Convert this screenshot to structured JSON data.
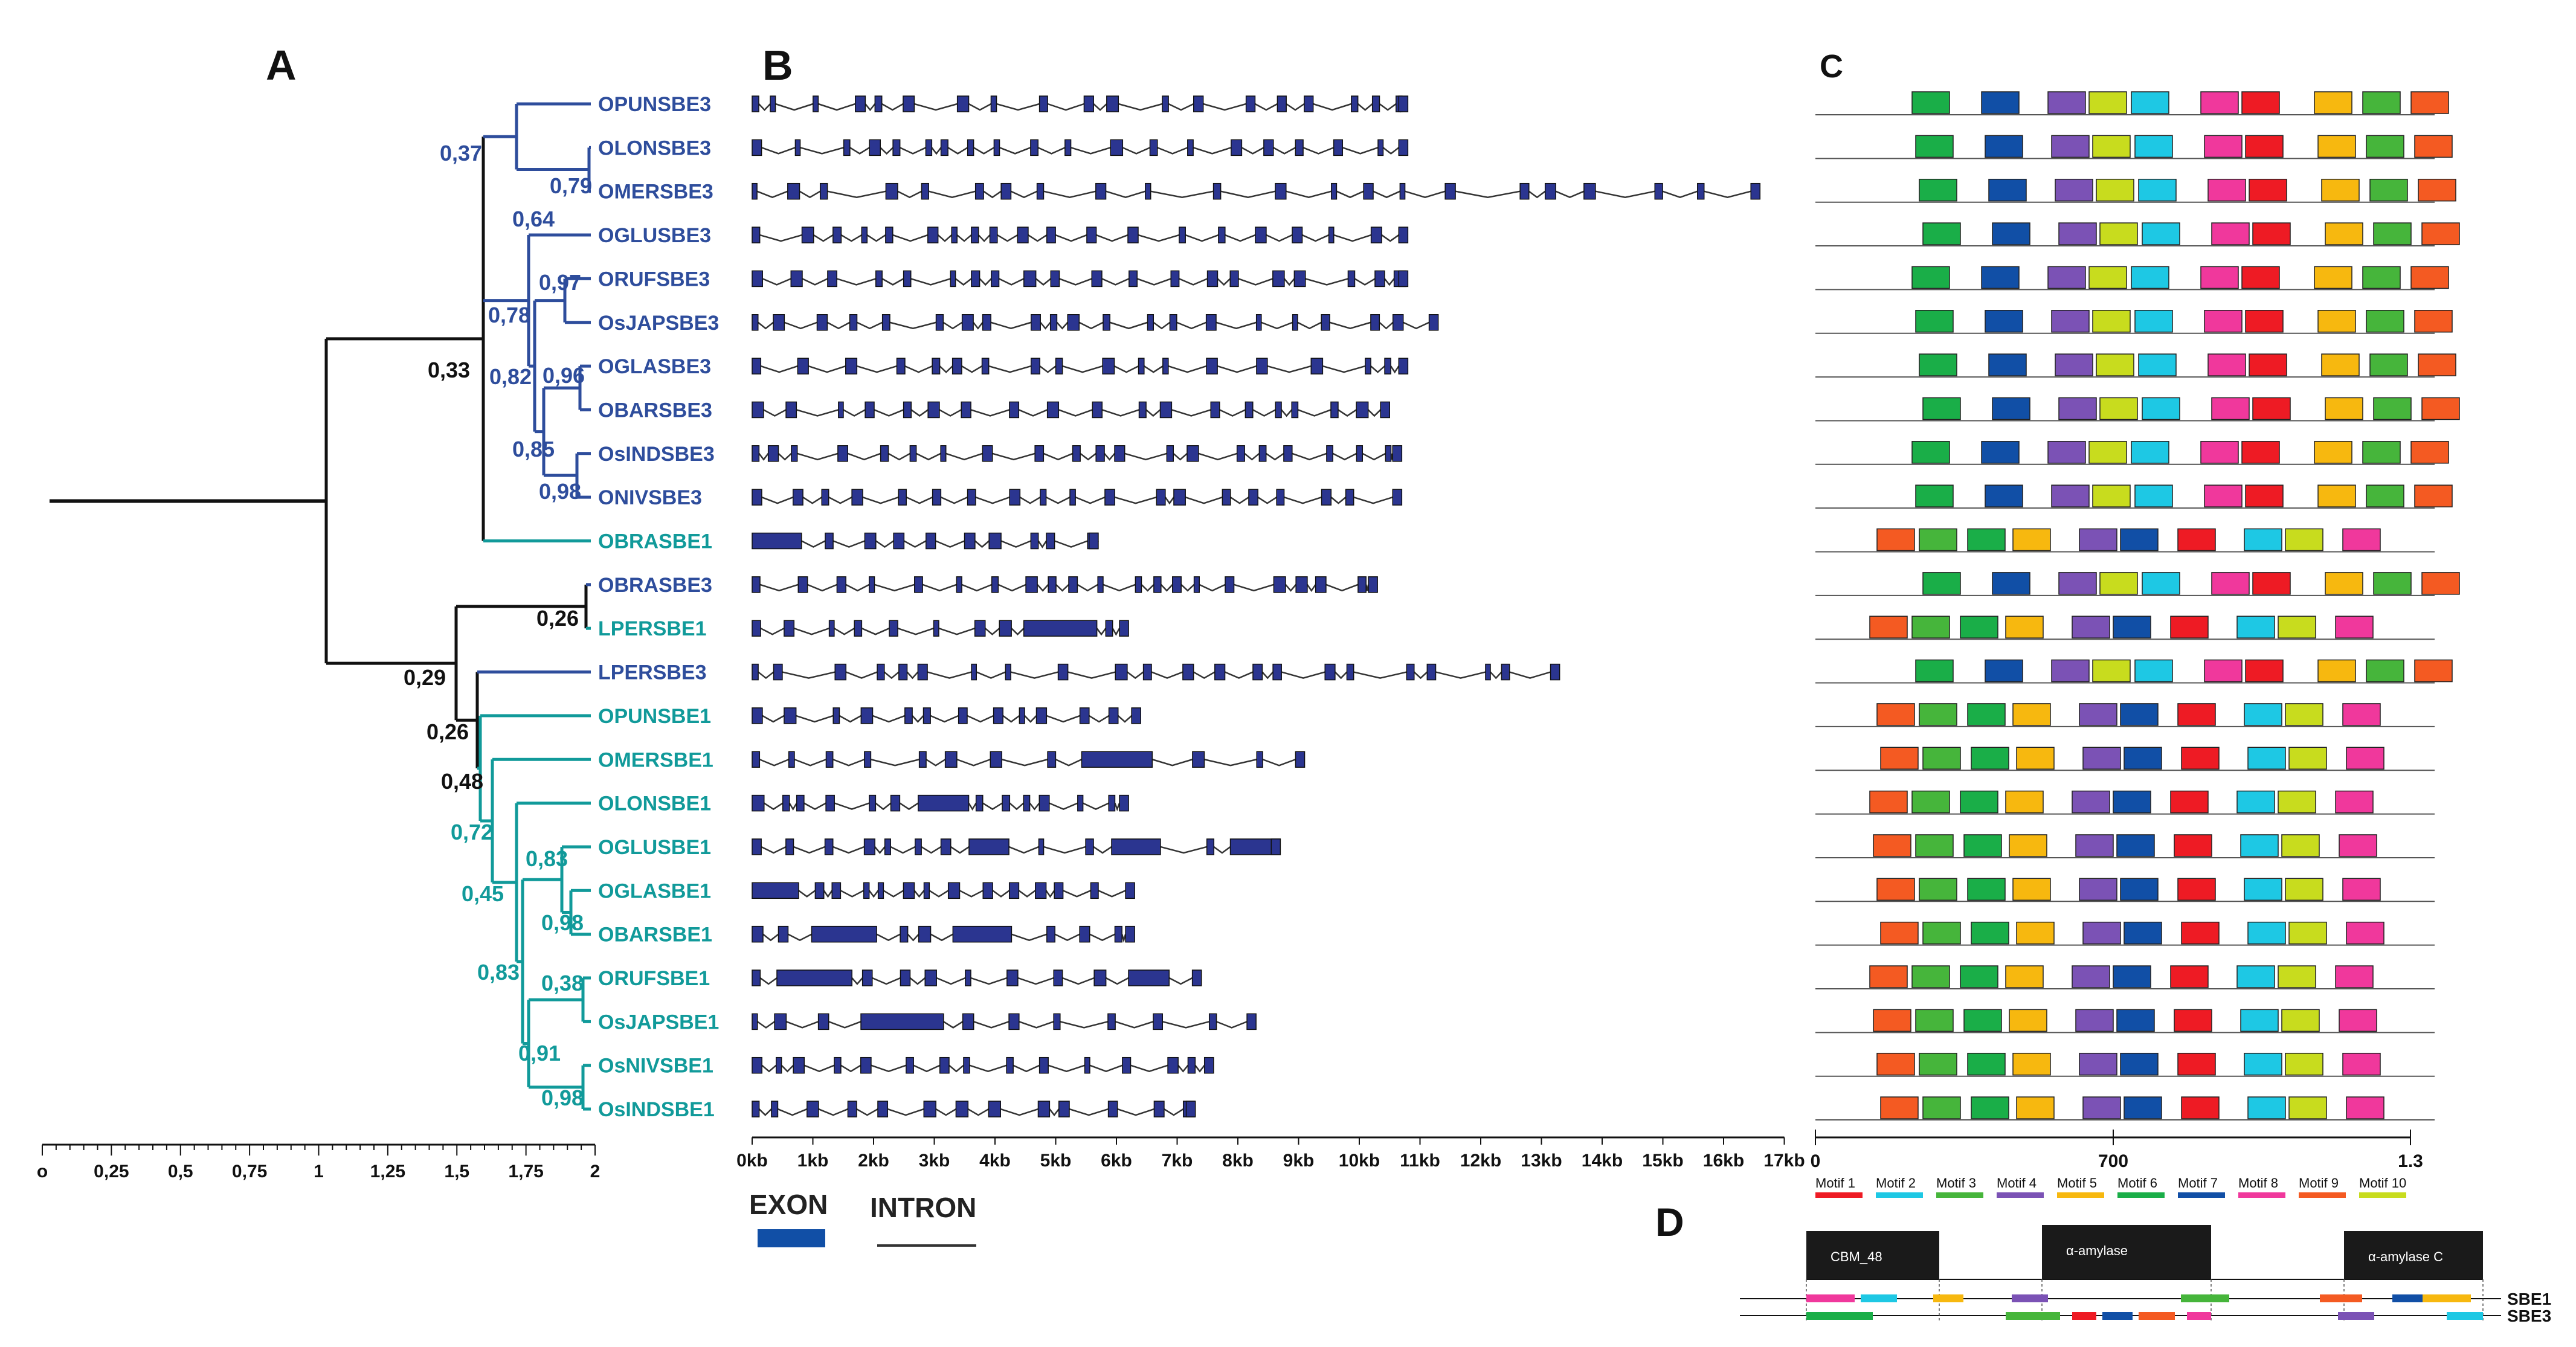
{
  "panels": {
    "a": "A",
    "b": "B",
    "c": "C",
    "d": "D"
  },
  "colors": {
    "sbe3": "#2e4d9c",
    "sbe1": "#119a9a",
    "root": "#111111",
    "exon": "#2b3590",
    "intron": "#333333"
  },
  "tree": {
    "leaves": [
      {
        "name": "OPUNSBE3",
        "group": "sbe3"
      },
      {
        "name": "OLONSBE3",
        "group": "sbe3"
      },
      {
        "name": "OMERSBE3",
        "group": "sbe3"
      },
      {
        "name": "OGLUSBE3",
        "group": "sbe3"
      },
      {
        "name": "ORUFSBE3",
        "group": "sbe3"
      },
      {
        "name": "OsJAPSBE3",
        "group": "sbe3"
      },
      {
        "name": "OGLASBE3",
        "group": "sbe3"
      },
      {
        "name": "OBARSBE3",
        "group": "sbe3"
      },
      {
        "name": "OsINDSBE3",
        "group": "sbe3"
      },
      {
        "name": "ONIVSBE3",
        "group": "sbe3"
      },
      {
        "name": "OBRASBE1",
        "group": "sbe1"
      },
      {
        "name": "OBRASBE3",
        "group": "sbe3"
      },
      {
        "name": "LPERSBE1",
        "group": "sbe1"
      },
      {
        "name": "LPERSBE3",
        "group": "sbe3"
      },
      {
        "name": "OPUNSBE1",
        "group": "sbe1"
      },
      {
        "name": "OMERSBE1",
        "group": "sbe1"
      },
      {
        "name": "OLONSBE1",
        "group": "sbe1"
      },
      {
        "name": "OGLUSBE1",
        "group": "sbe1"
      },
      {
        "name": "OGLASBE1",
        "group": "sbe1"
      },
      {
        "name": "OBARSBE1",
        "group": "sbe1"
      },
      {
        "name": "ORUFSBE1",
        "group": "sbe1"
      },
      {
        "name": "OsJAPSBE1",
        "group": "sbe1"
      },
      {
        "name": "OsNIVSBE1",
        "group": "sbe1"
      },
      {
        "name": "OsINDSBE1",
        "group": "sbe1"
      }
    ],
    "bootstrap": [
      "0,37",
      "0,79",
      "0,64",
      "0,97",
      "0,78",
      "0,82",
      "0,96",
      "0,85",
      "0,98",
      "0,33",
      "0,26",
      "0,29",
      "0,26",
      "0,48",
      "0,72",
      "0,83",
      "0,45",
      "0,98",
      "0,83",
      "0,38",
      "0,91",
      "0,98"
    ],
    "scale": {
      "min": 0,
      "max": 2,
      "labels": [
        "o",
        "0,25",
        "0,5",
        "0,75",
        "1",
        "1,25",
        "1,5",
        "1,75",
        "2"
      ]
    }
  },
  "gene_structure": {
    "axis_max_kb": 17,
    "axis_labels": [
      "0kb",
      "1kb",
      "2kb",
      "3kb",
      "4kb",
      "5kb",
      "6kb",
      "7kb",
      "8kb",
      "9kb",
      "10kb",
      "11kb",
      "12kb",
      "13kb",
      "14kb",
      "15kb",
      "16kb",
      "17kb"
    ],
    "gene_lengths_kb": [
      10.8,
      10.8,
      16.6,
      10.8,
      10.8,
      11.3,
      10.8,
      10.5,
      10.7,
      10.7,
      5.7,
      10.3,
      6.2,
      13.3,
      6.4,
      9.1,
      6.2,
      8.7,
      6.3,
      6.3,
      7.4,
      8.3,
      7.6,
      7.3
    ],
    "legend": {
      "exon": "EXON",
      "intron": "INTRON"
    }
  },
  "motifs": {
    "axis_labels": [
      "0",
      "700",
      "1.3"
    ],
    "names": [
      "Motif 1",
      "Motif 2",
      "Motif 3",
      "Motif 4",
      "Motif 5",
      "Motif 6",
      "Motif 7",
      "Motif 8",
      "Motif 9",
      "Motif 10"
    ],
    "colors": [
      "#ee1b24",
      "#1ec8e4",
      "#46b53b",
      "#7b52b5",
      "#f7b80f",
      "#1aae48",
      "#114fa6",
      "#f0389c",
      "#f45a22",
      "#c8dc1e"
    ],
    "sbe3_order": [
      6,
      7,
      4,
      10,
      2,
      8,
      1,
      5,
      3,
      9
    ],
    "sbe1_order": [
      9,
      3,
      6,
      5,
      4,
      7,
      1,
      2,
      10,
      8
    ]
  },
  "domains": {
    "names": [
      "CBM_48",
      "α-amylase",
      "α-amylase C"
    ],
    "rows": [
      "SBE1",
      "SBE3"
    ]
  }
}
